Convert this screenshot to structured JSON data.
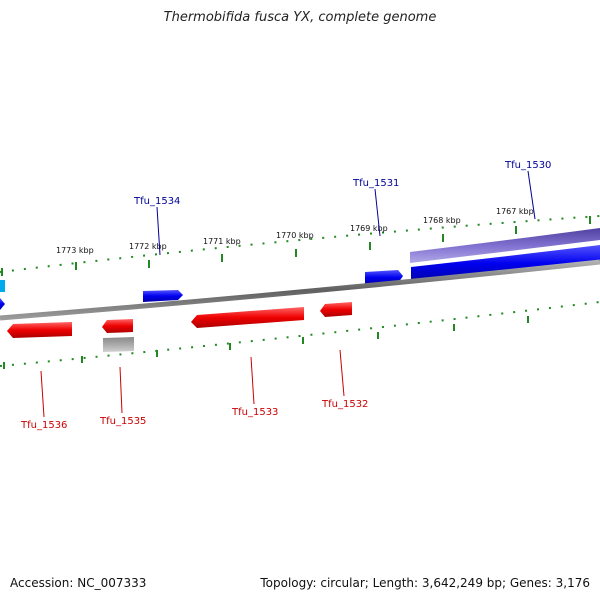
{
  "title": "Thermobifida fusca YX, complete genome",
  "footer": {
    "accession_label": "Accession:",
    "accession": "NC_007333",
    "topology_text": "Topology: circular; Length: 3,642,249 bp; Genes: 3,176"
  },
  "colors": {
    "forward_gene": "#0000ee",
    "reverse_gene": "#ee0000",
    "pseudo_gene": "#aaaaaa",
    "rna_region": "#7060c0",
    "edge_gene": "#00aaee",
    "backbone": "#808080",
    "tick": "#228822",
    "forward_label": "#000099",
    "reverse_label": "#cc0000"
  },
  "kbp_ticks": [
    "1773 kbp",
    "1772 kbp",
    "1771 kbp",
    "1770 kbp",
    "1769 kbp",
    "1768 kbp",
    "1767 kbp"
  ],
  "forward_genes": [
    {
      "label": "Tfu_1534"
    },
    {
      "label": "Tfu_1531"
    },
    {
      "label": "Tfu_1530"
    }
  ],
  "reverse_genes": [
    {
      "label": "Tfu_1536"
    },
    {
      "label": "Tfu_1535"
    },
    {
      "label": "Tfu_1533"
    },
    {
      "label": "Tfu_1532"
    }
  ]
}
